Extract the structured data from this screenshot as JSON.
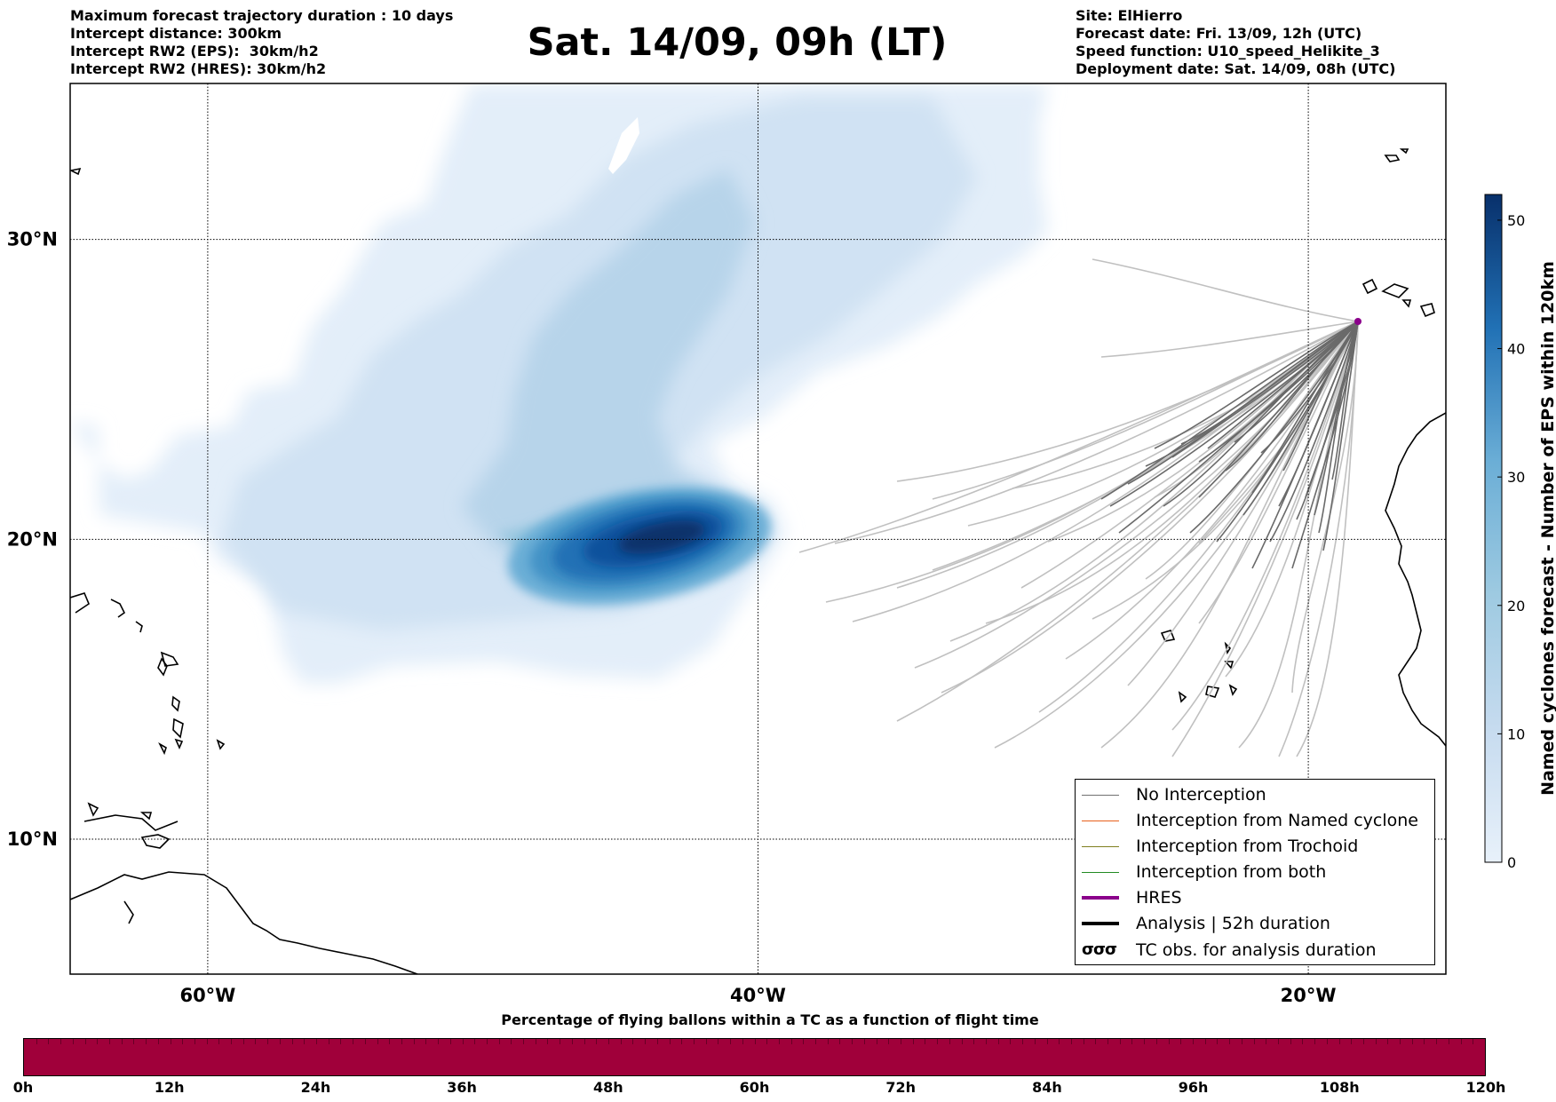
{
  "header_left": [
    "Maximum forecast trajectory duration : 10 days",
    "Intercept distance: 300km",
    "Intercept RW2 (EPS):  30km/h2",
    "Intercept RW2 (HRES): 30km/h2"
  ],
  "title": "Sat. 14/09, 09h (LT)",
  "header_right": [
    "Site: ElHierro",
    "Forecast date: Fri. 13/09, 12h (UTC)",
    "Speed function: U10_speed_Helikite_3",
    "Deployment date: Sat. 14/09, 08h (UTC)"
  ],
  "map": {
    "lat_labels": [
      "30°N",
      "20°N",
      "10°N"
    ],
    "lon_labels": [
      "60°W",
      "40°W",
      "20°W"
    ],
    "lat_values": [
      30,
      20,
      10
    ],
    "lon_values": [
      -60,
      -40,
      -20
    ],
    "lon_range": [
      -65,
      -15
    ],
    "lat_range": [
      5.5,
      35.2
    ],
    "density_colors": [
      "#e3eef9",
      "#d0e2f3",
      "#b7d4ea",
      "#9ac8e0",
      "#6baed6",
      "#4292c6",
      "#2171b5",
      "#08519c",
      "#08306b"
    ]
  },
  "colorbar": {
    "title": "Named cyclones forecast - Number of EPS within 120km",
    "ticks": [
      "0",
      "10",
      "20",
      "30",
      "40",
      "50"
    ],
    "range": [
      0,
      52
    ]
  },
  "legend": [
    {
      "label": "No Interception",
      "color": "#707070",
      "style": "thin"
    },
    {
      "label": "Interception from Named cyclone",
      "color": "#e8601c",
      "style": "thin"
    },
    {
      "label": "Interception from Trochoid",
      "color": "#7f7f20",
      "style": "thin"
    },
    {
      "label": "Interception from both",
      "color": "#228b22",
      "style": "thin"
    },
    {
      "label": "HRES",
      "color": "#8b008b",
      "style": "thick"
    },
    {
      "label": "Analysis | 52h duration",
      "color": "#000000",
      "style": "thick"
    },
    {
      "label": "TC obs. for analysis duration",
      "color": "#000000",
      "style": "symbol",
      "symbol": "σσσ"
    }
  ],
  "bar": {
    "title": "Percentage of flying ballons within a TC as a function of flight time",
    "color": "#a0003a",
    "ticks": [
      "0h",
      "12h",
      "24h",
      "36h",
      "48h",
      "60h",
      "72h",
      "84h",
      "96h",
      "108h",
      "120h"
    ]
  }
}
